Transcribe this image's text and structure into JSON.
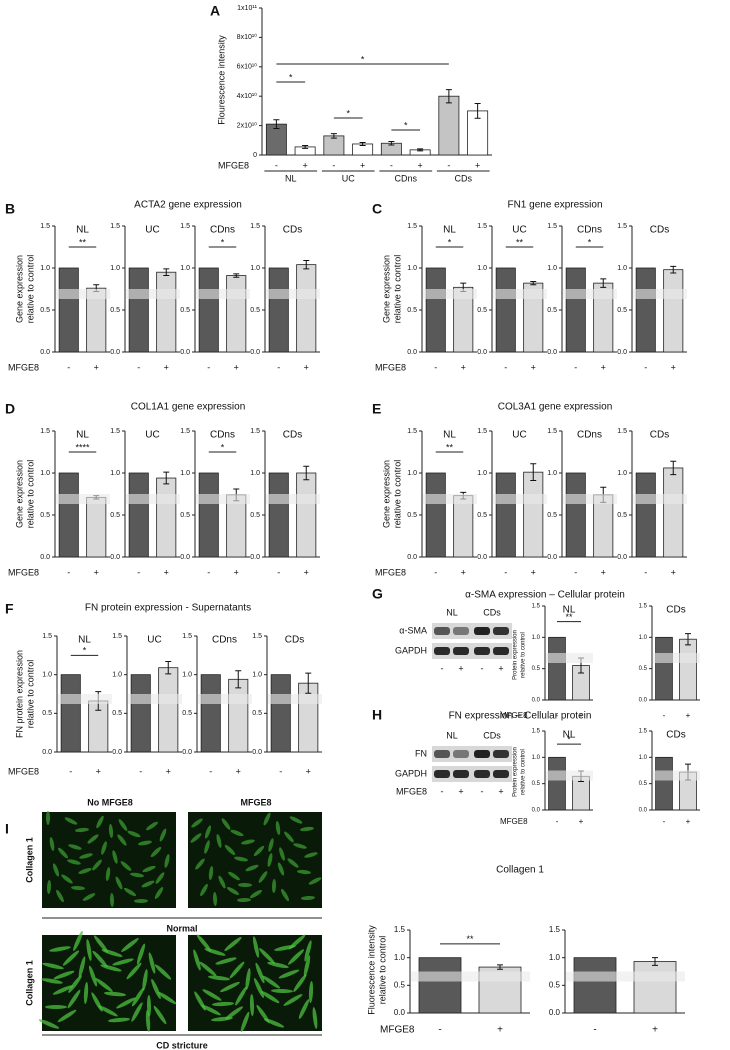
{
  "chart_data": [
    {
      "type": "bar",
      "panel": "A",
      "ylabel": "Flourescence intensity",
      "xlabel": "MFGE8",
      "groups": [
        "NL",
        "UC",
        "CDns",
        "CDs"
      ],
      "categories": [
        "-",
        "+",
        "-",
        "+",
        "-",
        "+",
        "-",
        "+"
      ],
      "values": [
        21000000000.0,
        5500000000.0,
        13000000000.0,
        7500000000.0,
        8000000000.0,
        3500000000.0,
        40000000000.0,
        30000000000.0
      ],
      "errors": [
        3000000000.0,
        1000000000.0,
        1500000000.0,
        1000000000.0,
        1200000000.0,
        700000000.0,
        4500000000.0,
        5000000000.0
      ],
      "colors": [
        "#6b6b6b",
        "#ffffff",
        "#c4c4c4",
        "#ffffff",
        "#c4c4c4",
        "#ffffff",
        "#c4c4c4",
        "#ffffff"
      ],
      "ylim": [
        0,
        100000000000.0
      ],
      "yticks": [
        0,
        {
          "value": 20000000000.0,
          "label": "2x10¹⁰"
        },
        {
          "value": 40000000000.0,
          "label": "4x10¹⁰"
        },
        {
          "value": 60000000000.0,
          "label": "6x10¹⁰"
        },
        {
          "value": 80000000000.0,
          "label": "8x10¹⁰"
        },
        {
          "value": 100000000000.0,
          "label": "1x10¹¹"
        }
      ],
      "significance": [
        "*",
        "*",
        "*",
        "*"
      ]
    },
    {
      "type": "bar",
      "panel": "B",
      "title": "ACTA2 gene expression",
      "ylabel": [
        "Gene expression",
        "relative to control"
      ],
      "xlabel": "MFGE8",
      "categories": [
        "-",
        "+"
      ],
      "colors": [
        "#595959",
        "#d9d9d9"
      ],
      "ylim": [
        0,
        1.5
      ],
      "yticks": [
        {
          "value": 0,
          "label": "0.0"
        },
        0.5,
        {
          "value": 1,
          "label": "1.0"
        },
        1.5
      ],
      "subplots": [
        {
          "title": "NL",
          "values": [
            1,
            0.76
          ],
          "errors": [
            null,
            0.04
          ],
          "significance": "**"
        },
        {
          "title": "UC",
          "values": [
            1,
            0.95
          ],
          "errors": [
            null,
            0.04
          ]
        },
        {
          "title": "CDns",
          "values": [
            1,
            0.91
          ],
          "errors": [
            null,
            0.02
          ],
          "significance": "*"
        },
        {
          "title": "CDs",
          "values": [
            1,
            1.04
          ],
          "errors": [
            null,
            0.05
          ]
        }
      ]
    },
    {
      "type": "bar",
      "panel": "C",
      "title": "FN1 gene expression",
      "ylabel": [
        "Gene expression",
        "relative to control"
      ],
      "xlabel": "MFGE8",
      "categories": [
        "-",
        "+"
      ],
      "colors": [
        "#595959",
        "#d9d9d9"
      ],
      "ylim": [
        0,
        1.5
      ],
      "yticks": [
        {
          "value": 0,
          "label": "0.0"
        },
        0.5,
        {
          "value": 1,
          "label": "1.0"
        },
        1.5
      ],
      "subplots": [
        {
          "title": "NL",
          "values": [
            1,
            0.77
          ],
          "errors": [
            null,
            0.05
          ],
          "significance": "*"
        },
        {
          "title": "UC",
          "values": [
            1,
            0.82
          ],
          "errors": [
            null,
            0.02
          ],
          "significance": "**"
        },
        {
          "title": "CDns",
          "values": [
            1,
            0.82
          ],
          "errors": [
            null,
            0.05
          ],
          "significance": "*"
        },
        {
          "title": "CDs",
          "values": [
            1,
            0.98
          ],
          "errors": [
            null,
            0.04
          ]
        }
      ]
    },
    {
      "type": "bar",
      "panel": "D",
      "title": "COL1A1 gene expression",
      "ylabel": [
        "Gene expression",
        "relative to control"
      ],
      "xlabel": "MFGE8",
      "categories": [
        "-",
        "+"
      ],
      "colors": [
        "#595959",
        "#d9d9d9"
      ],
      "ylim": [
        0,
        1.5
      ],
      "yticks": [
        {
          "value": 0,
          "label": "0.0"
        },
        0.5,
        {
          "value": 1,
          "label": "1.0"
        },
        1.5
      ],
      "subplots": [
        {
          "title": "NL",
          "values": [
            1,
            0.71
          ],
          "errors": [
            null,
            0.02
          ],
          "significance": "****"
        },
        {
          "title": "UC",
          "values": [
            1,
            0.94
          ],
          "errors": [
            null,
            0.07
          ]
        },
        {
          "title": "CDns",
          "values": [
            1,
            0.74
          ],
          "errors": [
            null,
            0.07
          ],
          "significance": "*"
        },
        {
          "title": "CDs",
          "values": [
            1,
            1.0
          ],
          "errors": [
            null,
            0.08
          ]
        }
      ]
    },
    {
      "type": "bar",
      "panel": "E",
      "title": "COL3A1 gene expression",
      "ylabel": [
        "Gene expression",
        "relative to control"
      ],
      "xlabel": "MFGE8",
      "categories": [
        "-",
        "+"
      ],
      "colors": [
        "#595959",
        "#d9d9d9"
      ],
      "ylim": [
        0,
        1.5
      ],
      "yticks": [
        {
          "value": 0,
          "label": "0.0"
        },
        0.5,
        {
          "value": 1,
          "label": "1.0"
        },
        1.5
      ],
      "subplots": [
        {
          "title": "NL",
          "values": [
            1,
            0.73
          ],
          "errors": [
            null,
            0.04
          ],
          "significance": "**"
        },
        {
          "title": "UC",
          "values": [
            1,
            1.01
          ],
          "errors": [
            null,
            0.1
          ]
        },
        {
          "title": "CDns",
          "values": [
            1,
            0.74
          ],
          "errors": [
            null,
            0.09
          ]
        },
        {
          "title": "CDs",
          "values": [
            1,
            1.06
          ],
          "errors": [
            null,
            0.08
          ]
        }
      ]
    },
    {
      "type": "bar",
      "panel": "F",
      "title": "FN protein expression - Supernatants",
      "ylabel": [
        "FN protein expression",
        "relative to control"
      ],
      "xlabel": "MFGE8",
      "categories": [
        "-",
        "+"
      ],
      "colors": [
        "#595959",
        "#d9d9d9"
      ],
      "ylim": [
        0,
        1.5
      ],
      "yticks": [
        {
          "value": 0,
          "label": "0.0"
        },
        0.5,
        {
          "value": 1,
          "label": "1.0"
        },
        1.5
      ],
      "subplots": [
        {
          "title": "NL",
          "values": [
            1,
            0.66
          ],
          "errors": [
            null,
            0.12
          ],
          "significance": "*"
        },
        {
          "title": "UC",
          "values": [
            1,
            1.09
          ],
          "errors": [
            null,
            0.08
          ]
        },
        {
          "title": "CDns",
          "values": [
            1,
            0.94
          ],
          "errors": [
            null,
            0.11
          ]
        },
        {
          "title": "CDs",
          "values": [
            1,
            0.89
          ],
          "errors": [
            null,
            0.13
          ]
        }
      ]
    },
    {
      "type": "bar",
      "panel": "G",
      "title": "α-SMA expression – Cellular protein",
      "ylabel": [
        "Protein expression",
        "relative to control"
      ],
      "xlabel": "MFGE8",
      "categories": [
        "-",
        "+"
      ],
      "colors": [
        "#595959",
        "#d9d9d9"
      ],
      "ylim": [
        0,
        1.5
      ],
      "yticks": [
        {
          "value": 0,
          "label": "0.0"
        },
        0.5,
        {
          "value": 1,
          "label": "1.0"
        },
        1.5
      ],
      "blot": {
        "columns": [
          "NL",
          "CDs"
        ],
        "rows": [
          "α-SMA",
          "GAPDH"
        ],
        "lanes": [
          "-",
          "+",
          "-",
          "+"
        ]
      },
      "subplots": [
        {
          "title": "NL",
          "values": [
            1,
            0.55
          ],
          "errors": [
            null,
            0.12
          ],
          "significance": "**"
        },
        {
          "title": "CDs",
          "values": [
            1,
            0.97
          ],
          "errors": [
            null,
            0.09
          ]
        }
      ]
    },
    {
      "type": "bar",
      "panel": "H",
      "title": "FN expression – Cellular protein",
      "ylabel": [
        "Protein expression",
        "relative to control"
      ],
      "xlabel": "MFGE8",
      "categories": [
        "-",
        "+"
      ],
      "colors": [
        "#595959",
        "#d9d9d9"
      ],
      "ylim": [
        0,
        1.5
      ],
      "yticks": [
        {
          "value": 0,
          "label": "0.0"
        },
        0.5,
        {
          "value": 1,
          "label": "1.0"
        },
        1.5
      ],
      "blot": {
        "columns": [
          "NL",
          "CDs"
        ],
        "rows": [
          "FN",
          "GAPDH"
        ],
        "lanes": [
          "-",
          "+",
          "-",
          "+"
        ],
        "lane_label": "MFGE8"
      },
      "subplots": [
        {
          "title": "NL",
          "values": [
            1,
            0.64
          ],
          "errors": [
            null,
            0.1
          ],
          "significance": "*"
        },
        {
          "title": "CDs",
          "values": [
            1,
            0.72
          ],
          "errors": [
            null,
            0.15
          ]
        }
      ]
    },
    {
      "type": "bar",
      "panel": "I",
      "title": "Collagen 1",
      "ylabel": [
        "Fluorescence intensity",
        "relative to control"
      ],
      "xlabel": "MFGE8",
      "categories": [
        "-",
        "+"
      ],
      "colors": [
        "#595959",
        "#d9d9d9"
      ],
      "ylim": [
        0,
        1.5
      ],
      "yticks": [
        {
          "value": 0,
          "label": "0.0"
        },
        0.5,
        {
          "value": 1,
          "label": "1.0"
        },
        1.5
      ],
      "images": {
        "columns": [
          "No MFGE8",
          "MFGE8"
        ],
        "rows": [
          {
            "label": "Collagen 1",
            "caption": "Normal"
          },
          {
            "label": "Collagen 1",
            "caption": "CD stricture"
          }
        ]
      },
      "subplots": [
        {
          "values": [
            1,
            0.83
          ],
          "errors": [
            null,
            0.04
          ],
          "significance": "**"
        },
        {
          "values": [
            1,
            0.93
          ],
          "errors": [
            null,
            0.07
          ]
        }
      ]
    }
  ]
}
